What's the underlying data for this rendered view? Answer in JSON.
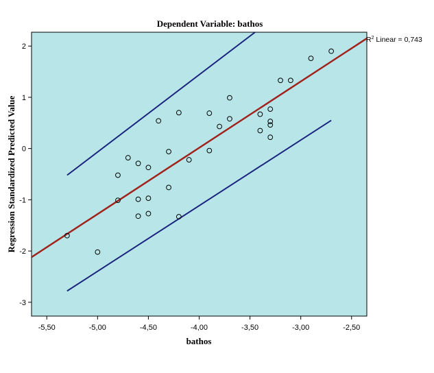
{
  "chart_data": {
    "type": "scatter",
    "title": "Dependent Variable: bathos",
    "xlabel": "bathos",
    "ylabel": "Regression Standardized Predicted Value",
    "xlim": [
      -5.65,
      -2.35
    ],
    "ylim": [
      -3.27,
      2.27
    ],
    "x_ticks": [
      -5.5,
      -5.0,
      -4.5,
      -4.0,
      -3.5,
      -3.0,
      -2.5
    ],
    "x_tick_labels": [
      "-5,50",
      "-5,00",
      "-4,50",
      "-4,00",
      "-3,50",
      "-3,00",
      "-2,50"
    ],
    "y_ticks": [
      2,
      1,
      0,
      -1,
      -2,
      -3
    ],
    "y_tick_labels": [
      "2",
      "1",
      "0",
      "-1",
      "-2",
      "-3"
    ],
    "grid": false,
    "colors": {
      "plot_background": "#b8e6e8",
      "fit_line": "#a0221a",
      "ci_lines": "#1a237e",
      "points": "#000000"
    },
    "points": [
      {
        "x": -5.3,
        "y": -1.7
      },
      {
        "x": -5.0,
        "y": -2.02
      },
      {
        "x": -4.8,
        "y": -0.52
      },
      {
        "x": -4.8,
        "y": -1.01
      },
      {
        "x": -4.7,
        "y": -0.18
      },
      {
        "x": -4.6,
        "y": -0.29
      },
      {
        "x": -4.6,
        "y": -0.99
      },
      {
        "x": -4.6,
        "y": -1.32
      },
      {
        "x": -4.5,
        "y": -0.37
      },
      {
        "x": -4.5,
        "y": -0.97
      },
      {
        "x": -4.5,
        "y": -1.27
      },
      {
        "x": -4.4,
        "y": 0.54
      },
      {
        "x": -4.3,
        "y": -0.06
      },
      {
        "x": -4.3,
        "y": -0.76
      },
      {
        "x": -4.2,
        "y": 0.7
      },
      {
        "x": -4.2,
        "y": -1.33
      },
      {
        "x": -4.1,
        "y": -0.22
      },
      {
        "x": -3.9,
        "y": 0.69
      },
      {
        "x": -3.9,
        "y": -0.04
      },
      {
        "x": -3.8,
        "y": 0.43
      },
      {
        "x": -3.7,
        "y": 0.99
      },
      {
        "x": -3.7,
        "y": 0.58
      },
      {
        "x": -3.4,
        "y": 0.67
      },
      {
        "x": -3.4,
        "y": 0.35
      },
      {
        "x": -3.3,
        "y": 0.77
      },
      {
        "x": -3.3,
        "y": 0.53
      },
      {
        "x": -3.3,
        "y": 0.46
      },
      {
        "x": -3.3,
        "y": 0.22
      },
      {
        "x": -3.2,
        "y": 1.33
      },
      {
        "x": -3.1,
        "y": 1.33
      },
      {
        "x": -2.9,
        "y": 1.76
      },
      {
        "x": -2.7,
        "y": 1.9
      }
    ],
    "fit_line": {
      "label_prefix": "R",
      "label_sup": "2",
      "label_text": " Linear = 0,743",
      "x": [
        -5.65,
        -2.35
      ],
      "y": [
        -2.12,
        2.15
      ]
    },
    "ci_upper": {
      "x": [
        -5.3,
        -3.45
      ],
      "y": [
        -0.52,
        2.27
      ]
    },
    "ci_lower": {
      "x": [
        -5.3,
        -2.7
      ],
      "y": [
        -2.78,
        0.55
      ]
    }
  }
}
